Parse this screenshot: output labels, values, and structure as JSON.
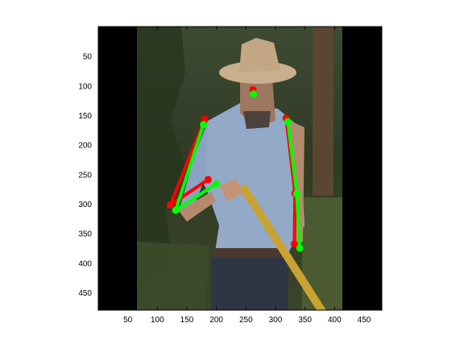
{
  "figure": {
    "image_description": "man in straw cowboy hat and light blue shirt holding a yellow-handled tool outdoors",
    "x_ticks": [
      "50",
      "100",
      "150",
      "200",
      "250",
      "300",
      "350",
      "400",
      "450"
    ],
    "y_ticks": [
      "50",
      "100",
      "150",
      "200",
      "250",
      "300",
      "350",
      "400",
      "450"
    ],
    "xlim": [
      0,
      480
    ],
    "ylim": [
      480,
      0
    ]
  },
  "skeletons": {
    "red": {
      "color": "#ff0000",
      "points": {
        "head": [
          262,
          107
        ],
        "l_shoulder": [
          180,
          157
        ],
        "l_elbow": [
          122,
          302
        ],
        "l_wrist": [
          186,
          259
        ],
        "r_shoulder": [
          318,
          155
        ],
        "r_elbow": [
          333,
          282
        ],
        "r_wrist": [
          332,
          368
        ]
      }
    },
    "green": {
      "color": "#00ff00",
      "points": {
        "head": [
          263,
          114
        ],
        "l_shoulder": [
          178,
          166
        ],
        "l_elbow": [
          131,
          311
        ],
        "l_wrist": [
          200,
          266
        ],
        "r_shoulder": [
          321,
          161
        ],
        "r_elbow": [
          336,
          283
        ],
        "r_wrist": [
          341,
          375
        ]
      }
    }
  }
}
